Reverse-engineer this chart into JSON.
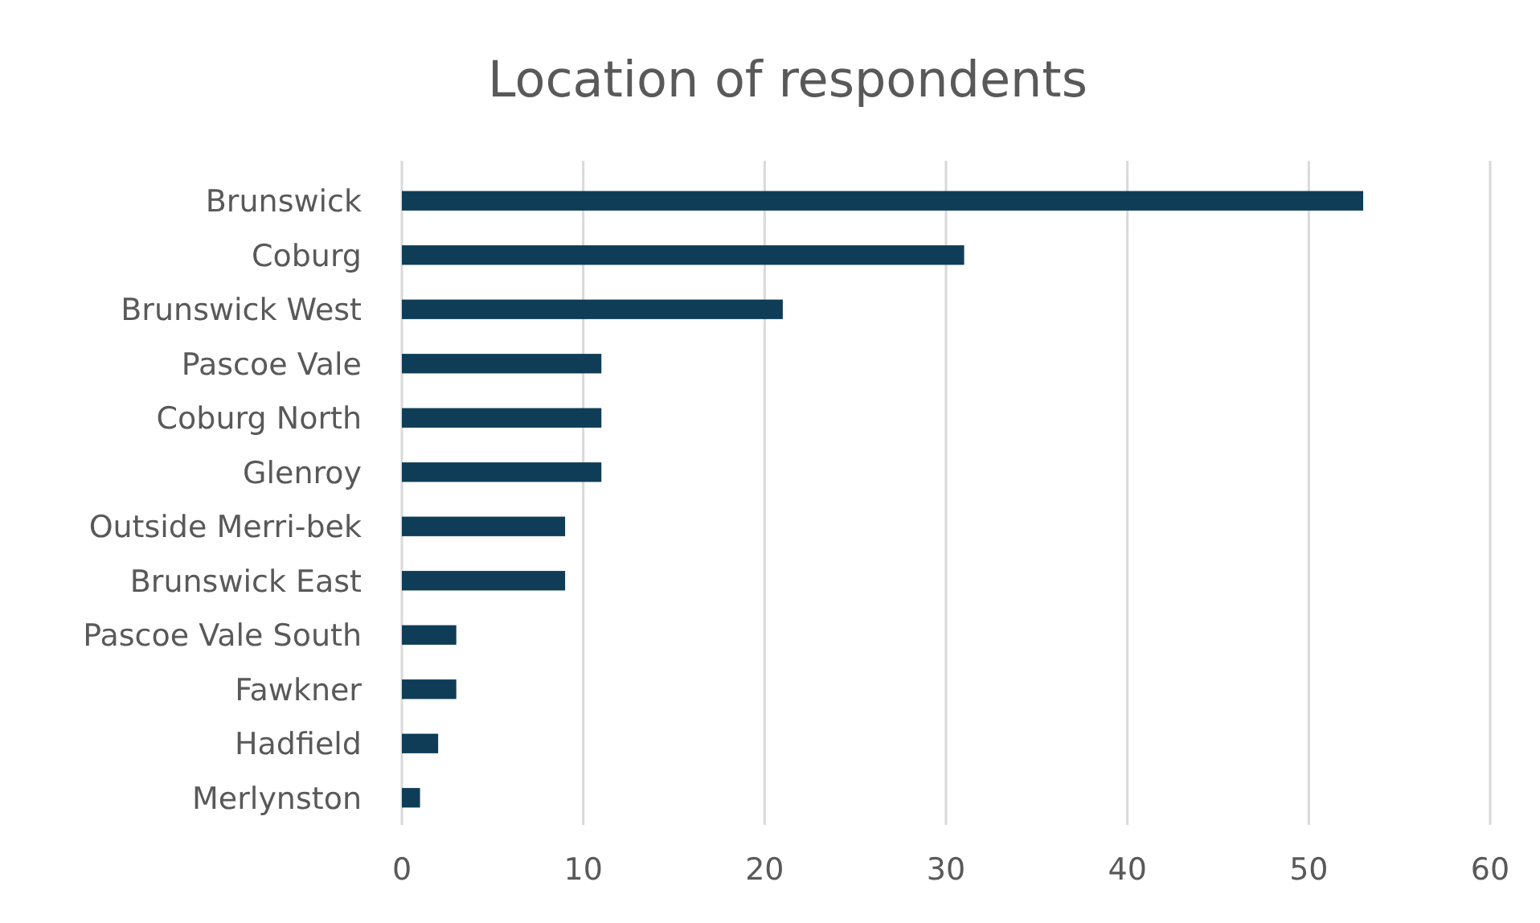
{
  "chart_data": {
    "type": "bar",
    "orientation": "horizontal",
    "title": "Location of respondents",
    "categories": [
      "Brunswick",
      "Coburg",
      "Brunswick West",
      "Pascoe Vale",
      "Coburg North",
      "Glenroy",
      "Outside Merri-bek",
      "Brunswick East",
      "Pascoe Vale South",
      "Fawkner",
      "Hadfield",
      "Merlynston"
    ],
    "values": [
      53,
      31,
      21,
      11,
      11,
      11,
      9,
      9,
      3,
      3,
      2,
      1
    ],
    "color": "#0f3d57",
    "xlim": [
      0,
      60
    ],
    "xticks": [
      0,
      10,
      20,
      30,
      40,
      50,
      60
    ],
    "grid": "x"
  }
}
